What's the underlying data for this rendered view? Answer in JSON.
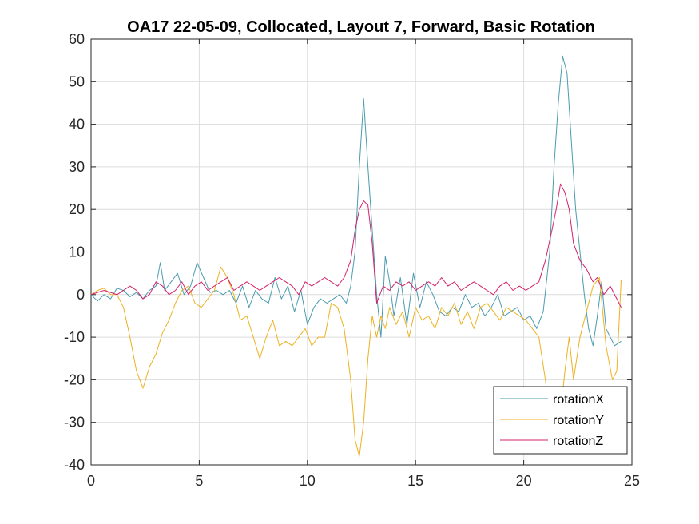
{
  "chart_data": {
    "type": "line",
    "title": "OA17 22-05-09, Collocated, Layout 7, Forward, Basic Rotation",
    "xlabel": "",
    "ylabel": "",
    "xlim": [
      0,
      25
    ],
    "ylim": [
      -40,
      60
    ],
    "xticks": [
      0,
      5,
      10,
      15,
      20,
      25
    ],
    "yticks": [
      -40,
      -30,
      -20,
      -10,
      0,
      10,
      20,
      30,
      40,
      50,
      60
    ],
    "grid": true,
    "legend_position": "bottom-right",
    "series": [
      {
        "name": "rotationX",
        "color": "#4a9bb0",
        "x": [
          0,
          0.3,
          0.6,
          0.9,
          1.2,
          1.5,
          1.8,
          2.1,
          2.4,
          2.7,
          3.0,
          3.2,
          3.4,
          3.7,
          4.0,
          4.3,
          4.6,
          4.9,
          5.2,
          5.5,
          5.8,
          6.1,
          6.4,
          6.7,
          7.0,
          7.3,
          7.6,
          7.9,
          8.2,
          8.5,
          8.8,
          9.1,
          9.4,
          9.7,
          10.0,
          10.3,
          10.6,
          10.9,
          11.2,
          11.5,
          11.8,
          12.0,
          12.2,
          12.4,
          12.6,
          12.8,
          13.0,
          13.2,
          13.4,
          13.6,
          13.8,
          14.0,
          14.3,
          14.6,
          14.9,
          15.2,
          15.5,
          15.8,
          16.1,
          16.4,
          16.7,
          17.0,
          17.3,
          17.6,
          17.9,
          18.2,
          18.5,
          18.8,
          19.1,
          19.4,
          19.7,
          20.0,
          20.3,
          20.6,
          20.9,
          21.2,
          21.4,
          21.6,
          21.8,
          22.0,
          22.2,
          22.4,
          22.6,
          22.8,
          23.0,
          23.2,
          23.4,
          23.6,
          23.8,
          24.0,
          24.2,
          24.5
        ],
        "y": [
          0,
          -1.5,
          0,
          -1,
          1.5,
          1,
          -0.5,
          0.5,
          -1,
          1,
          2,
          7.5,
          1,
          3,
          5,
          0,
          2,
          7.5,
          4,
          0.5,
          1,
          0,
          1,
          -2,
          2,
          -3,
          1,
          -1,
          -2,
          4,
          -1,
          2,
          -4,
          1,
          -7,
          -3,
          -1,
          -2,
          -1,
          0,
          -2,
          2,
          10,
          30,
          46,
          30,
          15,
          0,
          -10,
          9,
          3,
          -5,
          4,
          -7,
          5,
          -3,
          3,
          0,
          -4,
          -5,
          -3,
          -4,
          0,
          -3,
          -2,
          -5,
          -3,
          0,
          -5,
          -4,
          -3,
          -6,
          -5,
          -8,
          -4,
          10,
          30,
          45,
          56,
          52,
          36,
          20,
          10,
          0,
          -8,
          -12,
          -5,
          3,
          -8,
          -10,
          -12,
          -11
        ]
      },
      {
        "name": "rotationY",
        "color": "#edb120",
        "x": [
          0,
          0.3,
          0.6,
          0.9,
          1.2,
          1.5,
          1.8,
          2.1,
          2.4,
          2.7,
          3.0,
          3.3,
          3.6,
          3.9,
          4.2,
          4.5,
          4.8,
          5.1,
          5.4,
          5.7,
          6.0,
          6.3,
          6.6,
          6.9,
          7.2,
          7.5,
          7.8,
          8.1,
          8.4,
          8.7,
          9.0,
          9.3,
          9.6,
          9.9,
          10.2,
          10.5,
          10.8,
          11.1,
          11.4,
          11.7,
          12.0,
          12.2,
          12.4,
          12.6,
          12.8,
          13.0,
          13.2,
          13.4,
          13.6,
          13.8,
          14.1,
          14.4,
          14.7,
          15.0,
          15.3,
          15.6,
          15.9,
          16.2,
          16.5,
          16.8,
          17.1,
          17.4,
          17.7,
          18.0,
          18.3,
          18.6,
          18.9,
          19.2,
          19.5,
          19.8,
          20.1,
          20.4,
          20.7,
          21.0,
          21.3,
          21.5,
          21.7,
          21.9,
          22.1,
          22.3,
          22.6,
          22.9,
          23.2,
          23.5,
          23.8,
          24.1,
          24.3,
          24.5
        ],
        "y": [
          0,
          1,
          1.5,
          0,
          0,
          -3,
          -10,
          -18,
          -22,
          -17,
          -14,
          -9,
          -6,
          -2,
          1,
          2,
          -2,
          -3,
          -1,
          1,
          6.5,
          4,
          0,
          -6,
          -5,
          -10,
          -15,
          -10,
          -6,
          -12,
          -11,
          -12,
          -10,
          -8,
          -12,
          -10,
          -10,
          -2,
          -3,
          -8,
          -20,
          -34,
          -38,
          -30,
          -15,
          -5,
          -10,
          -5,
          -8,
          -3,
          -7,
          -4,
          -10,
          -3,
          -6,
          -5,
          -8,
          -3,
          -5,
          -2,
          -7,
          -4,
          -8,
          -3,
          -2,
          -4,
          -6,
          -3,
          -4,
          -5,
          -6,
          -8,
          -10,
          -20,
          -32,
          -37,
          -28,
          -18,
          -10,
          -20,
          -10,
          -4,
          2,
          4,
          -12,
          -20,
          -18,
          3.5
        ]
      },
      {
        "name": "rotationZ",
        "color": "#d4206a",
        "x": [
          0,
          0.3,
          0.6,
          0.9,
          1.2,
          1.5,
          1.8,
          2.1,
          2.4,
          2.7,
          3.0,
          3.3,
          3.6,
          3.9,
          4.2,
          4.5,
          4.8,
          5.1,
          5.4,
          5.7,
          6.0,
          6.3,
          6.6,
          6.9,
          7.2,
          7.5,
          7.8,
          8.1,
          8.4,
          8.7,
          9.0,
          9.3,
          9.6,
          9.9,
          10.2,
          10.5,
          10.8,
          11.1,
          11.4,
          11.7,
          12.0,
          12.2,
          12.4,
          12.6,
          12.8,
          13.0,
          13.2,
          13.5,
          13.8,
          14.1,
          14.4,
          14.7,
          15.0,
          15.3,
          15.6,
          15.9,
          16.2,
          16.5,
          16.8,
          17.1,
          17.4,
          17.7,
          18.0,
          18.3,
          18.6,
          18.9,
          19.2,
          19.5,
          19.8,
          20.1,
          20.4,
          20.7,
          21.0,
          21.3,
          21.5,
          21.7,
          21.9,
          22.1,
          22.3,
          22.6,
          22.9,
          23.2,
          23.4,
          23.7,
          24.0,
          24.5
        ],
        "y": [
          0,
          0.5,
          1,
          0.5,
          0,
          1,
          2,
          1,
          -1,
          0,
          3,
          2,
          0,
          1,
          3,
          0,
          2,
          3,
          1,
          2,
          3,
          4,
          1,
          2,
          3,
          2,
          1,
          2,
          3,
          4,
          3,
          2,
          0,
          3,
          2,
          3,
          4,
          3,
          2,
          4,
          8,
          15,
          20,
          22,
          21,
          12,
          -2,
          2,
          1,
          3,
          2,
          3,
          1,
          2,
          3,
          2,
          4,
          2,
          3,
          1,
          2,
          3,
          2,
          1,
          0,
          2,
          3,
          1,
          2,
          1,
          2,
          3,
          8,
          15,
          20,
          26,
          24,
          20,
          12,
          8,
          6,
          3,
          4,
          0,
          2,
          -3
        ]
      }
    ]
  }
}
